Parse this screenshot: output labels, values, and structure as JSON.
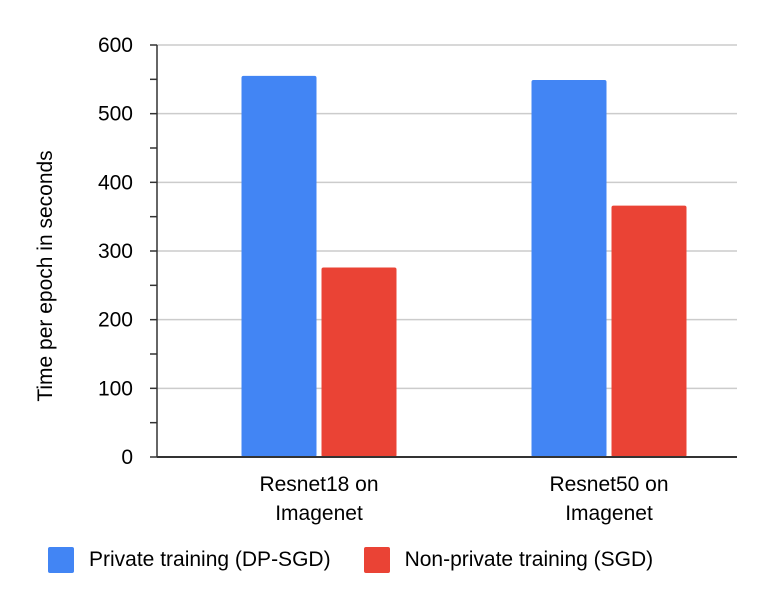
{
  "chart_data": {
    "type": "bar",
    "categories": [
      [
        "Resnet18 on",
        "Imagenet"
      ],
      [
        "Resnet50 on",
        "Imagenet"
      ]
    ],
    "series": [
      {
        "name": "Private training (DP-SGD)",
        "values": [
          555,
          549
        ],
        "color": "#4285F4"
      },
      {
        "name": "Non-private training (SGD)",
        "values": [
          276,
          366
        ],
        "color": "#EA4335"
      }
    ],
    "xlabel": "",
    "ylabel": "Time per epoch in seconds",
    "ylim": [
      0,
      600
    ],
    "yticks": [
      "0",
      "100",
      "200",
      "300",
      "400",
      "500",
      "600"
    ],
    "grid": true,
    "legend_position": "bottom"
  },
  "legend": {
    "items": [
      "Private training (DP-SGD)",
      "Non-private training (SGD)"
    ]
  }
}
